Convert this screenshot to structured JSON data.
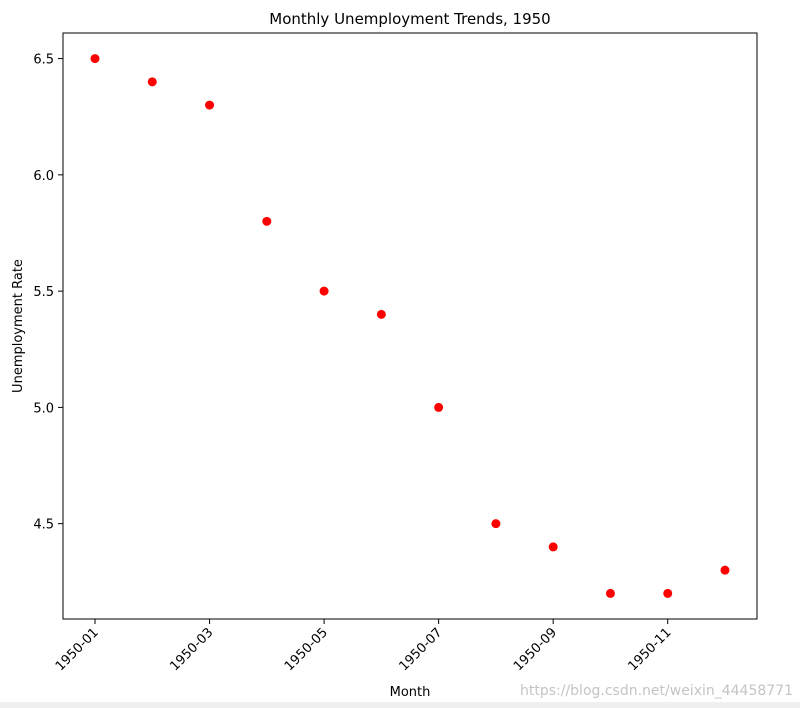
{
  "chart_data": {
    "type": "scatter",
    "title": "Monthly Unemployment Trends, 1950",
    "xlabel": "Month",
    "ylabel": "Unemployment Rate",
    "x": [
      "1950-01",
      "1950-02",
      "1950-03",
      "1950-04",
      "1950-05",
      "1950-06",
      "1950-07",
      "1950-08",
      "1950-09",
      "1950-10",
      "1950-11",
      "1950-12"
    ],
    "y": [
      6.5,
      6.4,
      6.3,
      5.8,
      5.5,
      5.4,
      5.0,
      4.5,
      4.4,
      4.2,
      4.2,
      4.3
    ],
    "xticks": [
      "1950-01",
      "1950-03",
      "1950-05",
      "1950-07",
      "1950-09",
      "1950-11"
    ],
    "yticks": [
      "4.5",
      "5.0",
      "5.5",
      "6.0",
      "6.5"
    ],
    "ylim": [
      4.09,
      6.61
    ],
    "marker_color": "#ff0000",
    "grid": false
  },
  "watermark": "https://blog.csdn.net/weixin_44458771"
}
